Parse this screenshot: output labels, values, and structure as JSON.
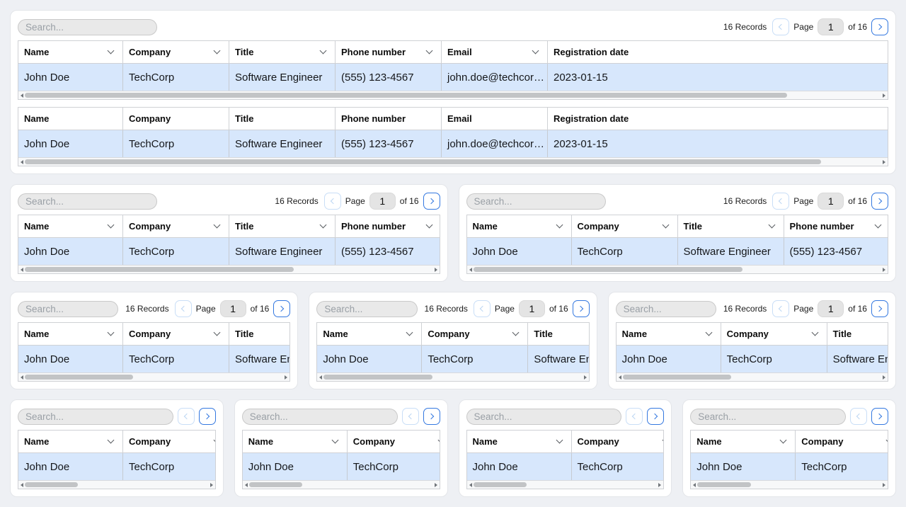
{
  "table": {
    "search_placeholder": "Search...",
    "records_text": "16 Records",
    "page_label": "Page",
    "page_value": "1",
    "of_text": "of 16",
    "columns": [
      "Name",
      "Company",
      "Title",
      "Phone number",
      "Email",
      "Registration date"
    ],
    "row": [
      "John Doe",
      "TechCorp",
      "Software Engineer",
      "(555) 123-4567",
      "john.doe@techcor…",
      "2023-01-15"
    ]
  },
  "icons": {
    "header_sort": "chevron-down-icon",
    "prev_page": "chevron-left-icon",
    "next_page": "chevron-right-icon",
    "scrollbar_left": "triangle-left-icon",
    "scrollbar_right": "triangle-right-icon"
  },
  "colors": {
    "page_bg": "#eef0f4",
    "card_bg": "#ffffff",
    "accent": "#3478e0",
    "accent_disabled": "#bcd6f3",
    "accent_disabled_border": "#c9def7",
    "row_highlight": "#d7e7fc",
    "border": "#cfd1d5",
    "input_bg": "#e9e9e9",
    "scroll_thumb": "#c2c4c6"
  }
}
